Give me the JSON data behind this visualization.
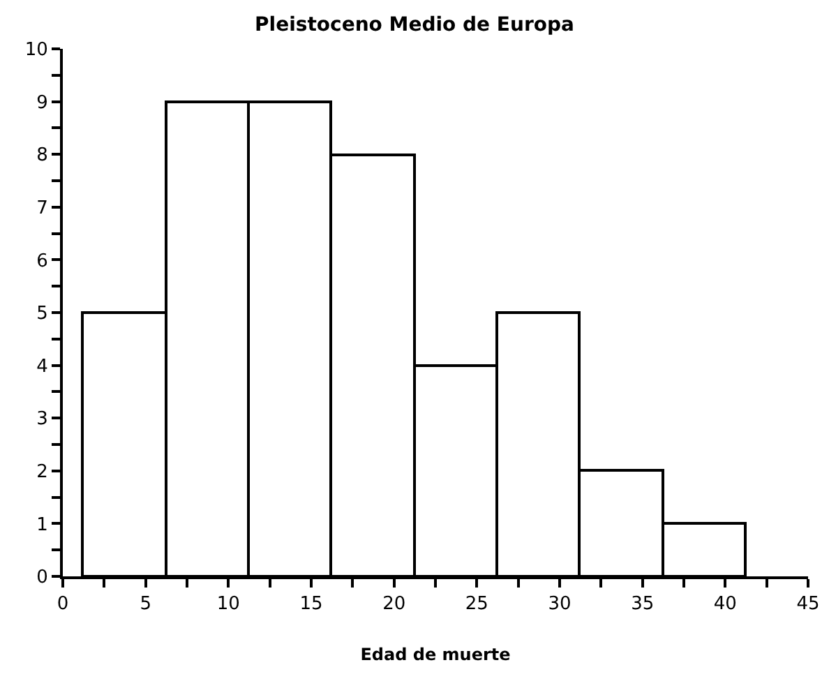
{
  "chart_data": {
    "type": "histogram",
    "title": "Pleistoceno Medio de Europa",
    "xlabel": "Edad de muerte",
    "bins": [
      1.2,
      6.2,
      11.2,
      16.2,
      21.2,
      26.2,
      31.2,
      36.2,
      41.2
    ],
    "values": [
      5,
      9,
      9,
      8,
      4,
      5,
      2,
      1
    ],
    "color": "#ffffff",
    "xlim": [
      0,
      45
    ],
    "xticks": [
      0,
      {
        "value": 2.5,
        "label": null
      },
      5,
      {
        "value": 7.5,
        "label": null
      },
      10,
      {
        "value": 12.5,
        "label": null
      },
      15,
      {
        "value": 17.5,
        "label": null
      },
      20,
      {
        "value": 22.5,
        "label": null
      },
      25,
      {
        "value": 27.5,
        "label": null
      },
      30,
      {
        "value": 32.5,
        "label": null
      },
      35,
      {
        "value": 37.5,
        "label": null
      },
      40,
      {
        "value": 42.5,
        "label": null
      },
      45
    ],
    "ylim": [
      0,
      10
    ],
    "yticks": [
      0,
      {
        "value": 0.5,
        "label": null
      },
      1,
      {
        "value": 1.5,
        "label": null
      },
      2,
      {
        "value": 2.5,
        "label": null
      },
      3,
      {
        "value": 3.5,
        "label": null
      },
      4,
      {
        "value": 4.5,
        "label": null
      },
      5,
      {
        "value": 5.5,
        "label": null
      },
      6,
      {
        "value": 6.5,
        "label": null
      },
      7,
      {
        "value": 7.5,
        "label": null
      },
      8,
      {
        "value": 8.5,
        "label": null
      },
      9,
      {
        "value": 9.5,
        "label": null
      },
      10
    ],
    "grid": false,
    "legend": false
  }
}
